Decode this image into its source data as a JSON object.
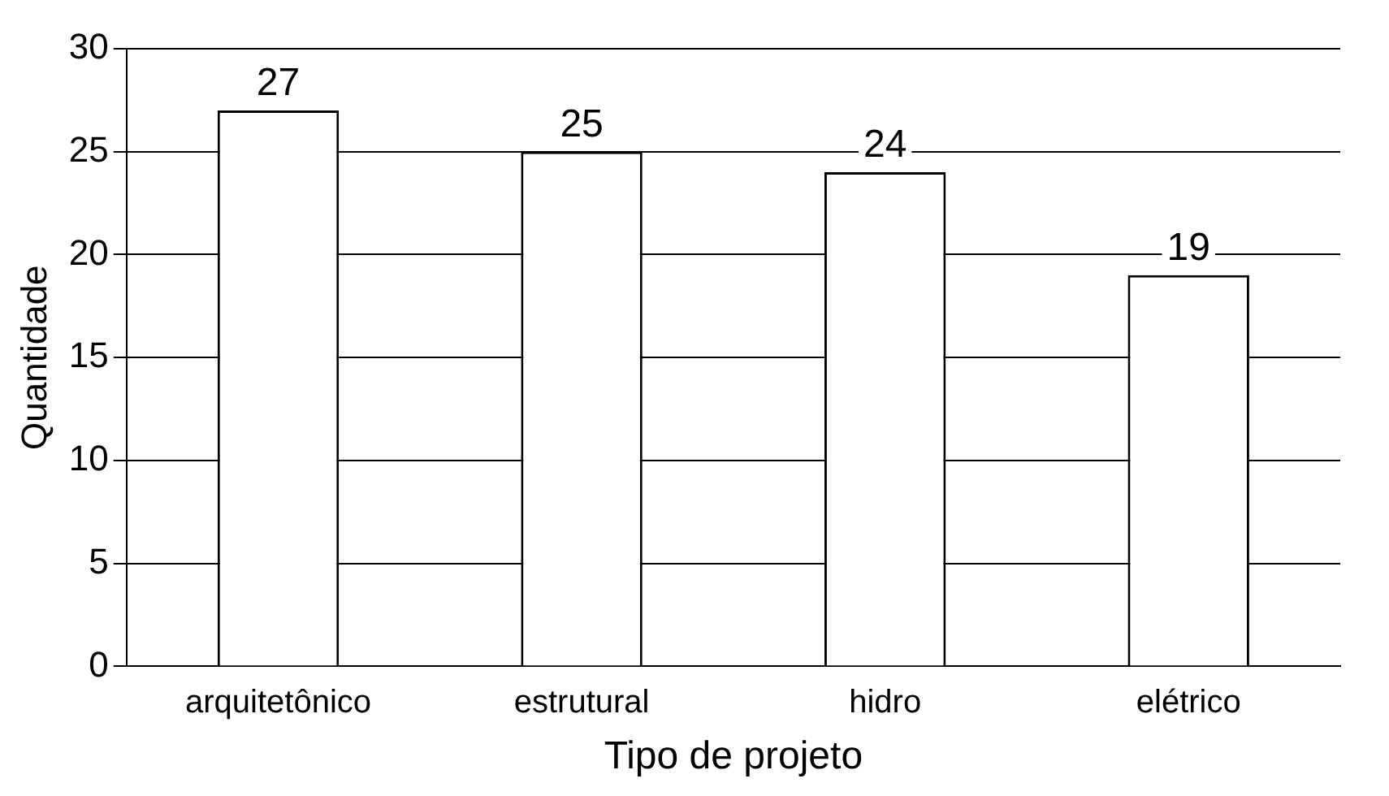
{
  "chart_data": {
    "type": "bar",
    "xlabel": "Tipo de projeto",
    "ylabel": "Quantidade",
    "categories": [
      "arquitetônico",
      "estrutural",
      "hidro",
      "elétrico"
    ],
    "values": [
      27,
      25,
      24,
      19
    ],
    "color": "#ffffff",
    "ylim": [
      0,
      30
    ],
    "yticks": [
      0,
      5,
      10,
      15,
      20,
      25,
      30
    ],
    "grid": "y",
    "legend": false,
    "data_labels": true
  }
}
